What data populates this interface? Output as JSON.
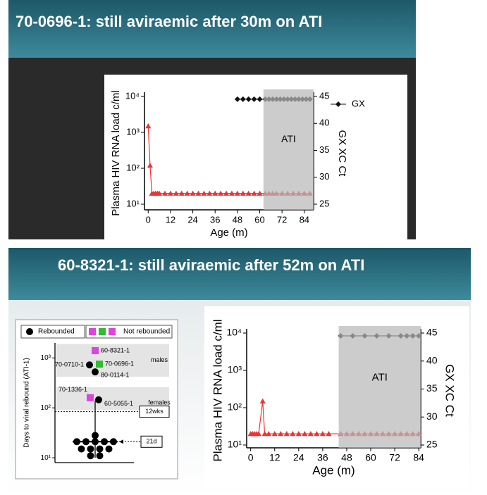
{
  "slides": [
    {
      "title": "70-0696-1: still aviraemic after 30m on ATI"
    },
    {
      "title": "60-8321-1: still aviraemic after 52m on ATI"
    }
  ],
  "chart_data": [
    {
      "type": "line",
      "y_label": "Plasma HIV RNA load c/ml",
      "x_label": "Age (m)",
      "y2_label": "GX XC Ct",
      "log_y": true,
      "xlim": [
        -2,
        89
      ],
      "xticks": [
        0,
        12,
        24,
        36,
        48,
        60,
        72,
        84
      ],
      "ylim": [
        10,
        10000
      ],
      "yticks": [
        {
          "value": 10,
          "label": "10¹"
        },
        {
          "value": 100,
          "label": "10²"
        },
        {
          "value": 1000,
          "label": "10³"
        },
        {
          "value": 10000,
          "label": "10⁴"
        }
      ],
      "y2lim": [
        25,
        45
      ],
      "y2ticks": [
        25,
        30,
        35,
        40,
        45
      ],
      "shaded_region": {
        "label": "ATI",
        "xlim": [
          62,
          89
        ]
      },
      "series": [
        {
          "color": "#ee3333",
          "marker": "triangle",
          "x": [
            0,
            1,
            2,
            3,
            4,
            5,
            6,
            9,
            12,
            15,
            18,
            21,
            24,
            27,
            30,
            33,
            36,
            39,
            42,
            45,
            48,
            51,
            54,
            57,
            60,
            63,
            65,
            67,
            69,
            72,
            75,
            78,
            81,
            84,
            87
          ],
          "values": [
            1500,
            120,
            20,
            20,
            20,
            20,
            20,
            20,
            20,
            20,
            20,
            20,
            20,
            20,
            20,
            20,
            20,
            20,
            20,
            20,
            20,
            20,
            20,
            20,
            20,
            20,
            20,
            20,
            20,
            20,
            20,
            20,
            20,
            20,
            20
          ]
        },
        {
          "name": "GX",
          "color": "#111111",
          "marker": "diamond",
          "axis": "y2",
          "x": [
            48,
            51,
            54,
            57,
            60,
            63,
            65,
            67,
            69,
            71,
            73,
            75,
            77,
            79,
            81,
            83,
            85,
            87
          ],
          "values": [
            44.5,
            44.5,
            44.5,
            44.5,
            44.5,
            44.5,
            44.5,
            44.5,
            44.5,
            44.5,
            44.5,
            44.5,
            44.5,
            44.5,
            44.5,
            44.5,
            44.5,
            44.5
          ]
        }
      ]
    },
    {
      "type": "dot",
      "y_label": "Days to viral rebound (ATI-1)",
      "log_y": true,
      "ylim": [
        8,
        2000
      ],
      "yticks": [
        {
          "value": 10,
          "label": "10¹"
        },
        {
          "value": 100,
          "label": "10²"
        },
        {
          "value": 1000,
          "label": "10³"
        }
      ],
      "legend": [
        {
          "name": "Rebounded",
          "color": "#000000"
        },
        {
          "name": "Not rebounded"
        }
      ],
      "bands": [
        {
          "label": "males",
          "ylim": [
            420,
            1900
          ]
        },
        {
          "label": "females",
          "ylim": [
            90,
            260
          ]
        }
      ],
      "points": [
        {
          "label": "60-8321-1",
          "value": 1400,
          "color": "#dd44dd",
          "rebounded": false
        },
        {
          "label": "70-0710-1",
          "value": 725,
          "color": "#000000",
          "rebounded": true
        },
        {
          "label": "70-0696-1",
          "value": 750,
          "color": "#33bb33",
          "rebounded": false
        },
        {
          "label": "80-0114-1",
          "value": 525,
          "color": "#000000",
          "rebounded": true
        },
        {
          "label": "70-1336-1",
          "value": 160,
          "color": "#dd44dd",
          "rebounded": false
        },
        {
          "label": "60-5055-1",
          "value": 145,
          "color": "#000000",
          "rebounded": true
        }
      ],
      "values": [
        28,
        21,
        21,
        21,
        21,
        21,
        15,
        15,
        15,
        15,
        11,
        11
      ],
      "error_bar": {
        "low": 10,
        "high": 140
      },
      "median": 21,
      "median_label": "21d",
      "reference": 84,
      "reference_label": "12wks"
    },
    {
      "type": "line",
      "y_label": "Plasma HIV RNA load c/ml",
      "x_label": "Age (m)",
      "y2_label": "GX XC Ct",
      "log_y": true,
      "xlim": [
        -2,
        85
      ],
      "xticks": [
        0,
        12,
        24,
        36,
        48,
        60,
        72,
        84
      ],
      "ylim": [
        10,
        10000
      ],
      "yticks": [
        {
          "value": 10,
          "label": "10¹"
        },
        {
          "value": 100,
          "label": "10²"
        },
        {
          "value": 1000,
          "label": "10³"
        },
        {
          "value": 10000,
          "label": "10⁴"
        }
      ],
      "y2lim": [
        25,
        45
      ],
      "y2ticks": [
        25,
        30,
        35,
        40,
        45
      ],
      "shaded_region": {
        "label": "ATI",
        "xlim": [
          44,
          85
        ]
      },
      "series": [
        {
          "color": "#ee3333",
          "marker": "triangle",
          "x": [
            0,
            1,
            2,
            3,
            4,
            6,
            7,
            9,
            12,
            15,
            18,
            21,
            24,
            27,
            30,
            33,
            36,
            39,
            45,
            48,
            51,
            54,
            57,
            60,
            63,
            66,
            69,
            72,
            75,
            78,
            81,
            84
          ],
          "values": [
            20,
            20,
            20,
            20,
            20,
            150,
            20,
            20,
            20,
            20,
            20,
            20,
            20,
            20,
            20,
            20,
            20,
            20,
            20,
            20,
            20,
            20,
            20,
            20,
            20,
            20,
            20,
            20,
            20,
            20,
            20,
            20
          ]
        },
        {
          "color": "#111111",
          "marker": "diamond",
          "axis": "y2",
          "x": [
            45,
            51,
            57,
            63,
            69,
            75,
            78,
            81,
            84
          ],
          "values": [
            44.5,
            44.5,
            44.5,
            44.5,
            44.5,
            44.5,
            44.5,
            44.5,
            44.5
          ]
        }
      ]
    }
  ]
}
